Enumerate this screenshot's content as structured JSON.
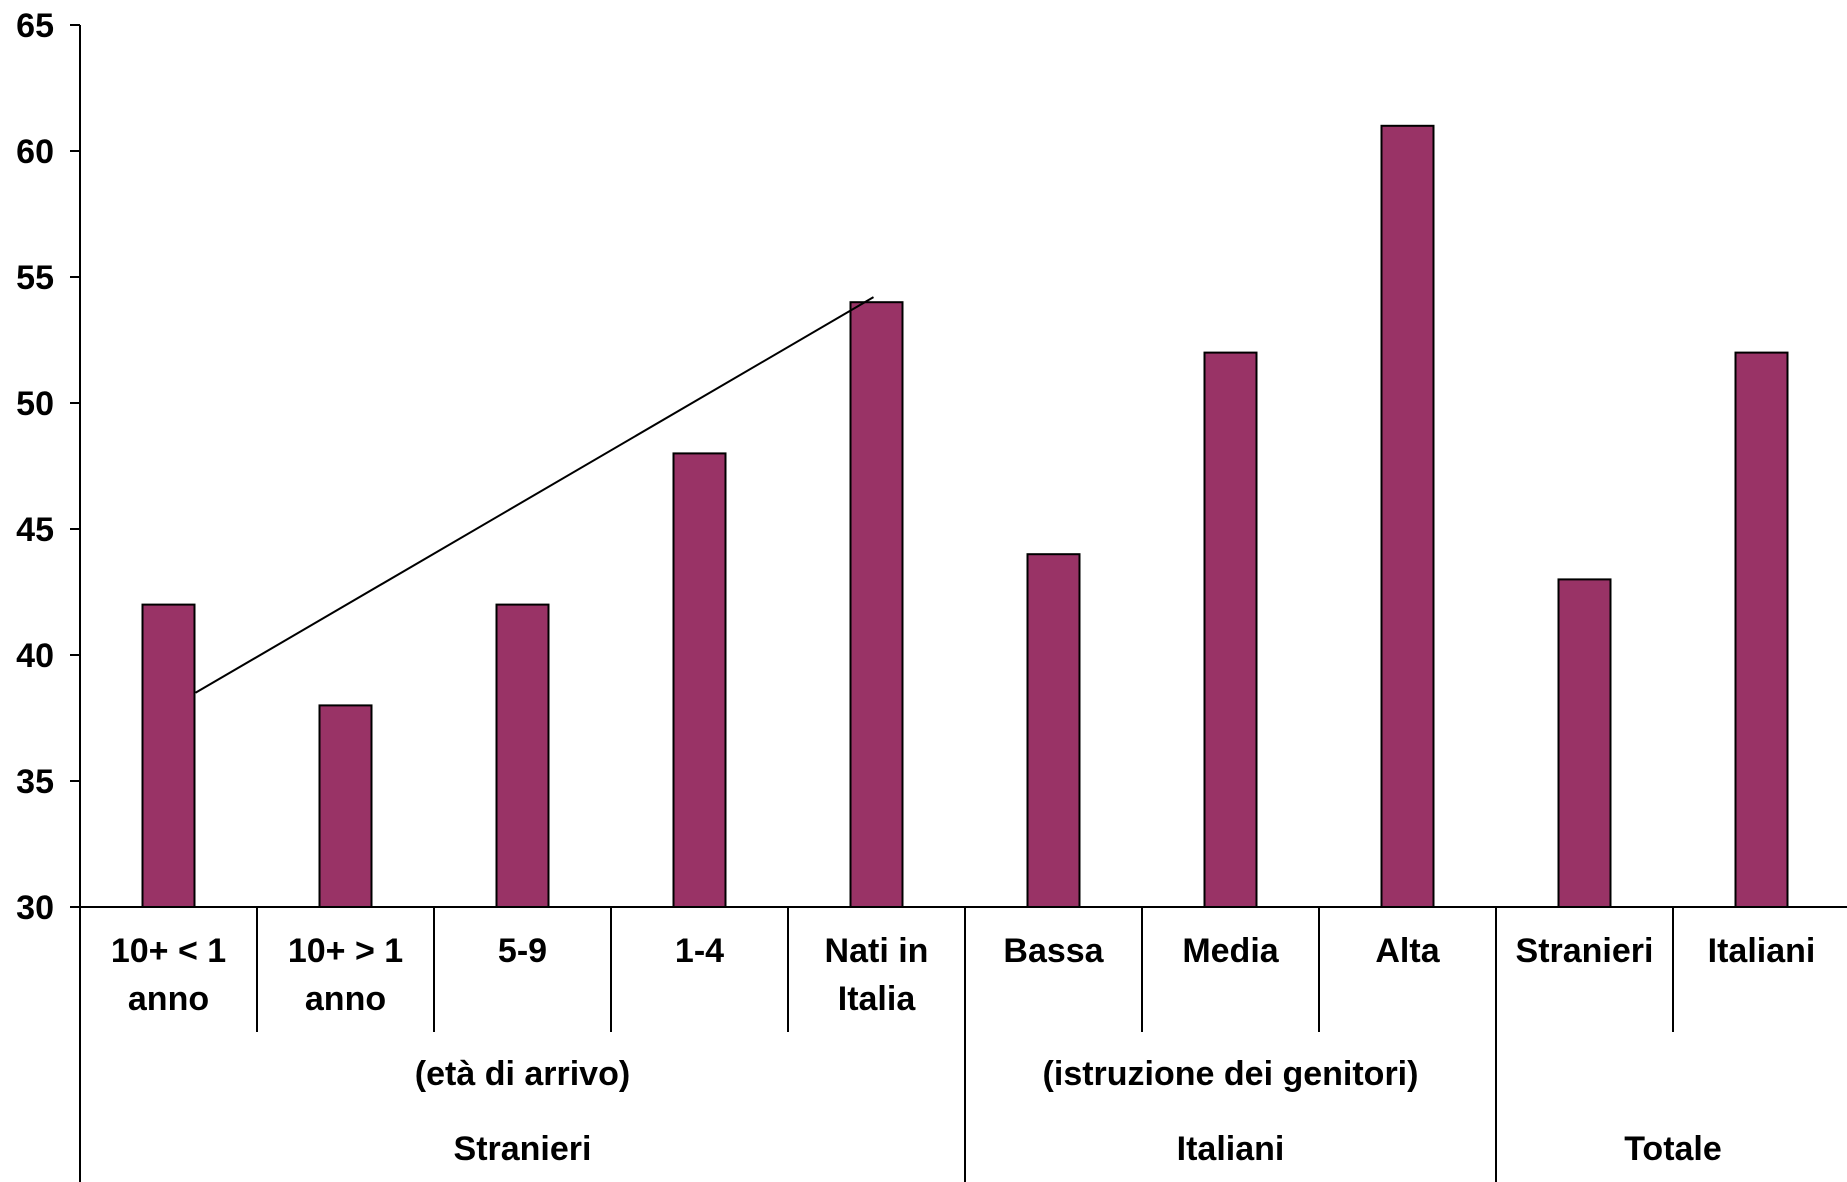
{
  "chart_data": {
    "type": "bar",
    "title": "",
    "xlabel": "",
    "ylabel": "",
    "ylim": [
      30,
      65
    ],
    "yticks": [
      30,
      35,
      40,
      45,
      50,
      55,
      60,
      65
    ],
    "grid": false,
    "legend": "none",
    "bar_color": "#993366",
    "categories": [
      [
        "10+ < 1",
        "anno"
      ],
      [
        "10+ > 1",
        "anno"
      ],
      [
        "5-9"
      ],
      [
        "1-4"
      ],
      [
        "Nati in",
        "Italia"
      ],
      [
        "Bassa"
      ],
      [
        "Media"
      ],
      [
        "Alta"
      ],
      [
        "Stranieri"
      ],
      [
        "Italiani"
      ]
    ],
    "values": [
      42,
      38,
      42,
      48,
      54,
      44,
      52,
      61,
      43,
      52
    ],
    "subgroups": [
      {
        "label": "(età di arrivo)",
        "start": 0,
        "end": 4
      },
      {
        "label": "(istruzione dei genitori)",
        "start": 5,
        "end": 7
      }
    ],
    "groups": [
      {
        "label": "Stranieri",
        "start": 0,
        "end": 4
      },
      {
        "label": "Italiani",
        "start": 5,
        "end": 7
      },
      {
        "label": "Totale",
        "start": 8,
        "end": 9
      }
    ],
    "annotations": [
      {
        "type": "trend-line",
        "from": {
          "category": 0,
          "y": 38.5
        },
        "to": {
          "category": 4,
          "y": 54.2
        }
      }
    ]
  }
}
